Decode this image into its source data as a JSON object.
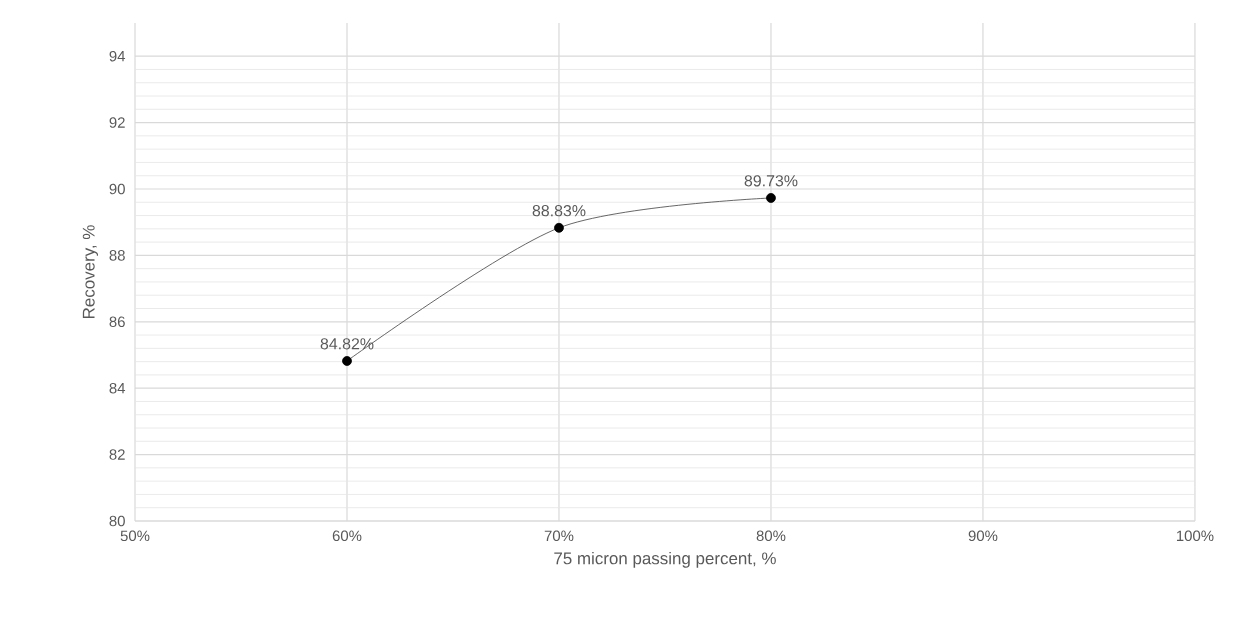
{
  "chart_data": {
    "type": "line",
    "xlabel": "75 micron passing percent, %",
    "ylabel": "Recovery, %",
    "x": [
      60,
      70,
      80
    ],
    "series": [
      {
        "color": "#000000",
        "values": [
          84.82,
          88.83,
          89.73
        ],
        "value_labels": [
          "84.82%",
          "88.83%",
          "89.73%"
        ]
      }
    ],
    "xlim": [
      50,
      100
    ],
    "xticks": [
      {
        "value": 50,
        "label": "50%"
      },
      {
        "value": 60,
        "label": "60%"
      },
      {
        "value": 70,
        "label": "70%"
      },
      {
        "value": 80,
        "label": "80%"
      },
      {
        "value": 90,
        "label": "90%"
      },
      {
        "value": 100,
        "label": "100%"
      }
    ],
    "ylim": [
      80,
      95
    ],
    "yticks": [
      80,
      82,
      84,
      86,
      88,
      90,
      92,
      94
    ],
    "grid": true,
    "marker": "circle",
    "line_style": "solid"
  }
}
